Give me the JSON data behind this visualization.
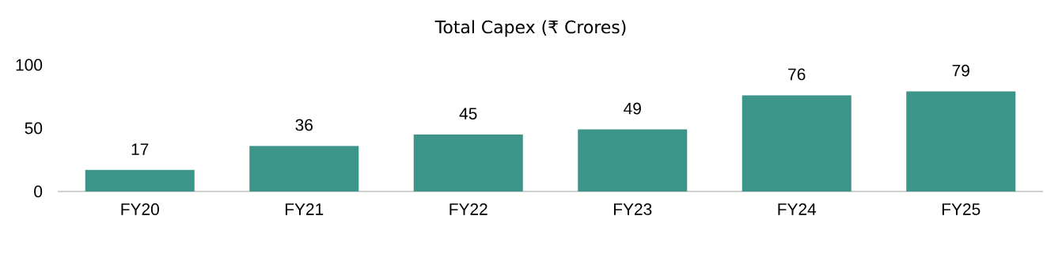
{
  "chart_data": {
    "type": "bar",
    "title": "Total Capex (₹ Crores)",
    "categories": [
      "FY20",
      "FY21",
      "FY22",
      "FY23",
      "FY24",
      "FY25"
    ],
    "values": [
      17,
      36,
      45,
      49,
      76,
      79
    ],
    "color": "#3d9488",
    "ylim": [
      0,
      100
    ],
    "yticks": [
      0,
      50,
      100
    ],
    "data_labels": true
  }
}
